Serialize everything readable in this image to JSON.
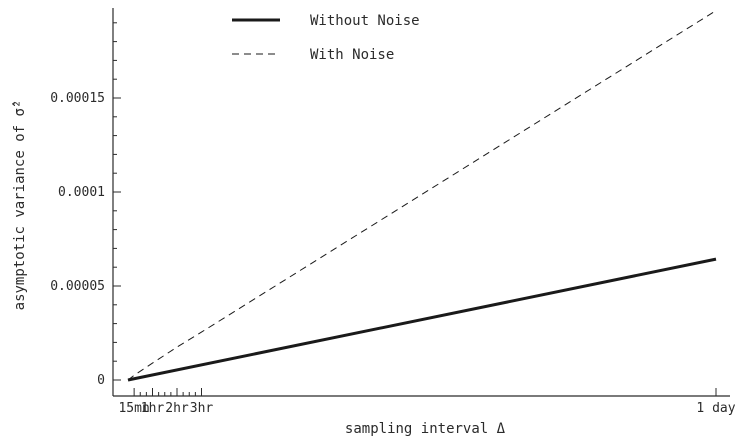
{
  "chart_data": {
    "type": "line",
    "title": "",
    "xlabel": "sampling interval Δ",
    "ylabel": "asymptotic variance of σ̂²",
    "x_tick_labels": [
      "15mn",
      "1hr",
      "2hr",
      "3hr",
      "1 day"
    ],
    "x_tick_values_hours": [
      0.25,
      1,
      2,
      3,
      24
    ],
    "xlim_hours": [
      0,
      24
    ],
    "y_tick_labels": [
      "0",
      "0.00005",
      "0.0001",
      "0.00015"
    ],
    "y_tick_values": [
      0,
      5e-05,
      0.0001,
      0.00015
    ],
    "ylim": [
      0,
      0.0002
    ],
    "x_unit": "hours",
    "legend_position": "top-center",
    "grid": false,
    "series": [
      {
        "name": "Without Noise",
        "style": "solid",
        "color": "#1a1a1a",
        "x": [
          0,
          24
        ],
        "y": [
          0,
          6.43e-05
        ]
      },
      {
        "name": "With Noise",
        "style": "dashed",
        "color": "#1a1a1a",
        "x": [
          0,
          0.25,
          1,
          2,
          3,
          24
        ],
        "y": [
          0,
          2.5e-06,
          9e-06,
          1.75e-05,
          2.55e-05,
          0.0001965
        ]
      }
    ]
  }
}
